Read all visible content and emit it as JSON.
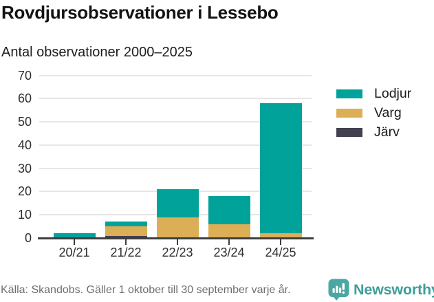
{
  "header": {
    "title": "Rovdjursobservationer i Lessebo",
    "subtitle": "Antal observationer 2000–2025"
  },
  "chart_data": {
    "type": "bar",
    "stacked": true,
    "title": "Rovdjursobservationer i Lessebo",
    "subtitle": "Antal observationer 2000–2025",
    "categories": [
      "20/21",
      "21/22",
      "22/23",
      "23/24",
      "24/25"
    ],
    "series": [
      {
        "name": "Lodjur",
        "color": "#00a29a",
        "values": [
          2,
          2,
          12,
          12,
          56
        ]
      },
      {
        "name": "Varg",
        "color": "#dcae56",
        "values": [
          0,
          4,
          9,
          6,
          2
        ]
      },
      {
        "name": "Järv",
        "color": "#434050",
        "values": [
          0,
          1,
          0,
          0,
          0
        ]
      }
    ],
    "stack_order_bottom_to_top": [
      "Järv",
      "Varg",
      "Lodjur"
    ],
    "totals": [
      2,
      7,
      21,
      18,
      58
    ],
    "xlabel": "",
    "ylabel": "",
    "ylim": [
      0,
      70
    ],
    "yticks": [
      0,
      10,
      20,
      30,
      40,
      50,
      60,
      70
    ],
    "grid": true,
    "legend_position": "right"
  },
  "legend": {
    "items": [
      {
        "label": "Lodjur",
        "color": "#00a29a"
      },
      {
        "label": "Varg",
        "color": "#dcae56"
      },
      {
        "label": "Järv",
        "color": "#434050"
      }
    ]
  },
  "footer": {
    "source": "Källa: Skandobs. Gäller 1 oktober till 30 september varje år.",
    "brand": "Newsworthy"
  },
  "colors": {
    "lodjur": "#00a29a",
    "varg": "#dcae56",
    "jarv": "#434050",
    "axis": "#3e3e3e",
    "gridline": "#e6e6e6",
    "brand_teal": "#3f9e99",
    "source_gray": "#6e6e6e"
  }
}
